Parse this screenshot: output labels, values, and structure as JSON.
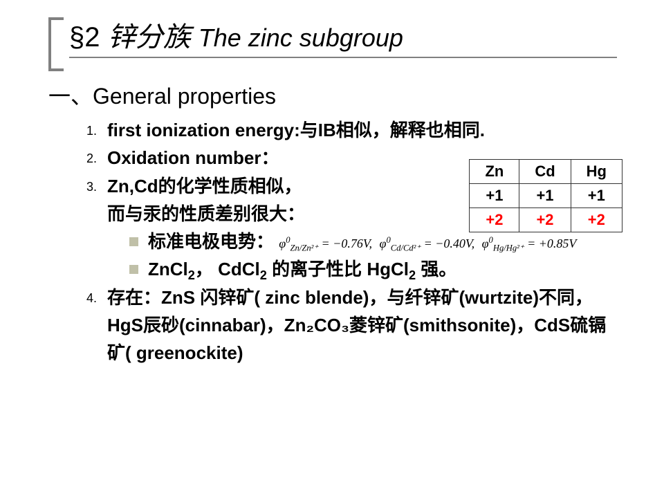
{
  "title": {
    "section": "§2",
    "cn": "锌分族",
    "en": "The zinc subgroup",
    "fontsize_main": 40,
    "color": "#000000",
    "bracket_color": "#808080",
    "underline_color": "#808080"
  },
  "heading": {
    "prefix": "一、",
    "text": "General properties",
    "fontsize": 32
  },
  "items": {
    "n1": "1.",
    "t1": "first ionization energy:与IB相似，解释也相同.",
    "n2": "2.",
    "t2": "Oxidation number：",
    "n3": "3.",
    "t3a": "Zn,Cd的化学性质相似，",
    "t3b": "而与汞的性质差别很大：",
    "t3c": "标准电极电势：",
    "t3d_pre": "ZnCl",
    "t3d_mid": "， CdCl",
    "t3d_mid2": " 的离子性比 HgCl",
    "t3d_end": " 强。",
    "n4": "4.",
    "t4": "存在：ZnS 闪锌矿( zinc blende)，与纤锌矿(wurtzite)不同，HgS辰砂(cinnabar)，Zn₂CO₃菱锌矿(smithsonite)，CdS硫镉矿( greenockite)"
  },
  "oxidation_table": {
    "headers": [
      "Zn",
      "Cd",
      "Hg"
    ],
    "row1": [
      "+1",
      "+1",
      "+1"
    ],
    "row2": [
      "+2",
      "+2",
      "+2"
    ],
    "row2_color": "#ff0000",
    "border_color": "#333333",
    "fontsize": 22
  },
  "potentials": {
    "p1_sub": "Zn/Zn²⁺",
    "p1_val": " = −0.76V",
    "p2_sub": "Cd/Cd²⁺",
    "p2_val": " = −0.40V",
    "p3_sub": "Hg/Hg²⁺",
    "p3_val": " = +0.85V",
    "fontsize": 18,
    "font_family": "Times New Roman"
  },
  "style": {
    "body_bg": "#ffffff",
    "text_color": "#000000",
    "list_fontsize": 26,
    "list_fontweight": "bold",
    "bullet_color": "#c0c0a8",
    "number_fontsize": 18
  }
}
